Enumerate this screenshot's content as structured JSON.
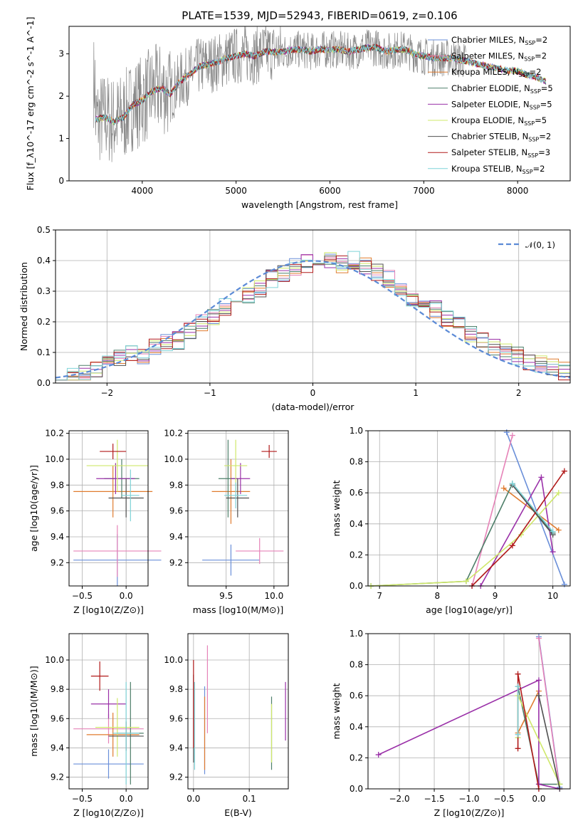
{
  "colors": {
    "ChM": "#6a8fd9",
    "SaM": "#e683b8",
    "KrM": "#e07b2f",
    "ChE": "#4e7f6a",
    "SaE": "#9a30a8",
    "KrE": "#cfe86a",
    "ChS": "#505050",
    "SaS": "#b11a1a",
    "KrS": "#7fd3d8"
  },
  "chart_data": [
    {
      "id": "spectrum",
      "type": "line",
      "title": "PLATE=1539, MJD=52943, FIBERID=0619, z=0.106",
      "xlabel": "wavelength [Angstrom, rest frame]",
      "ylabel": "Flux [f_λ10^-17 erg cm^-2 s^-1 A^-1]",
      "xlim": [
        3220,
        8560
      ],
      "ylim": [
        0,
        3.65
      ],
      "xticks": [
        "4000",
        "5000",
        "6000",
        "7000",
        "8000"
      ],
      "yticks": [
        "0",
        "1",
        "2",
        "3"
      ],
      "legend": [
        "Chabrier MILES, N_SSP=2",
        "Salpeter MILES, N_SSP=2",
        "Kroupa MILES, N_SSP=2",
        "Chabrier ELODIE, N_SSP=5",
        "Salpeter ELODIE, N_SSP=5",
        "Kroupa ELODIE, N_SSP=5",
        "Chabrier STELIB, N_SSP=2",
        "Salpeter STELIB, N_SSP=3",
        "Kroupa STELIB, N_SSP=2"
      ],
      "model_curve": [
        [
          3500,
          1.45
        ],
        [
          3600,
          1.5
        ],
        [
          3700,
          1.4
        ],
        [
          3800,
          1.5
        ],
        [
          3900,
          1.8
        ],
        [
          4000,
          1.9
        ],
        [
          4100,
          2.1
        ],
        [
          4200,
          2.2
        ],
        [
          4300,
          2.05
        ],
        [
          4400,
          2.35
        ],
        [
          4500,
          2.5
        ],
        [
          4600,
          2.7
        ],
        [
          4700,
          2.75
        ],
        [
          4800,
          2.8
        ],
        [
          4900,
          2.9
        ],
        [
          5000,
          2.95
        ],
        [
          5100,
          3.0
        ],
        [
          5200,
          2.95
        ],
        [
          5300,
          3.05
        ],
        [
          5400,
          3.05
        ],
        [
          5500,
          3.05
        ],
        [
          5600,
          3.1
        ],
        [
          5700,
          3.1
        ],
        [
          5800,
          3.05
        ],
        [
          5900,
          3.1
        ],
        [
          6000,
          3.1
        ],
        [
          6100,
          3.1
        ],
        [
          6200,
          3.05
        ],
        [
          6300,
          3.1
        ],
        [
          6400,
          3.15
        ],
        [
          6500,
          3.15
        ],
        [
          6600,
          3.05
        ],
        [
          6700,
          3.1
        ],
        [
          6800,
          3.1
        ],
        [
          6900,
          3.0
        ],
        [
          7000,
          2.95
        ],
        [
          7100,
          2.9
        ],
        [
          7200,
          2.9
        ],
        [
          7300,
          2.9
        ],
        [
          7400,
          2.85
        ],
        [
          7500,
          2.8
        ],
        [
          7600,
          2.75
        ],
        [
          7700,
          2.7
        ],
        [
          7800,
          2.65
        ],
        [
          7900,
          2.6
        ],
        [
          8000,
          2.6
        ],
        [
          8100,
          2.5
        ],
        [
          8200,
          2.45
        ],
        [
          8300,
          2.35
        ]
      ]
    },
    {
      "id": "residuals",
      "type": "step",
      "xlabel": "(data-model)/error",
      "ylabel": "Normed distribution",
      "xlim": [
        -2.5,
        2.5
      ],
      "ylim": [
        0,
        0.5
      ],
      "xticks": [
        "−2",
        "−1",
        "0",
        "1",
        "2"
      ],
      "yticks": [
        "0.0",
        "0.1",
        "0.2",
        "0.3",
        "0.4",
        "0.5"
      ],
      "legend": "𝒩(0, 1)",
      "base_hist": [
        0.03,
        0.02,
        0.03,
        0.05,
        0.06,
        0.08,
        0.1,
        0.09,
        0.12,
        0.13,
        0.14,
        0.17,
        0.2,
        0.22,
        0.25,
        0.27,
        0.29,
        0.31,
        0.34,
        0.36,
        0.38,
        0.39,
        0.4,
        0.4,
        0.39,
        0.4,
        0.38,
        0.36,
        0.34,
        0.31,
        0.28,
        0.26,
        0.24,
        0.21,
        0.19,
        0.16,
        0.14,
        0.12,
        0.1,
        0.09,
        0.07,
        0.06,
        0.05,
        0.04
      ]
    },
    {
      "id": "age-vs-Z",
      "type": "errorbar",
      "xlabel": "Z [log10(Z/Z⊙)]",
      "ylabel": "age  [log10(age/yr)]",
      "xlim": [
        -0.65,
        0.25
      ],
      "ylim": [
        9.02,
        10.22
      ],
      "xticks": [
        "−0.5",
        "0.0"
      ],
      "yticks": [
        "9.2",
        "9.4",
        "9.6",
        "9.8",
        "10.0",
        "10.2"
      ],
      "points": [
        {
          "s": "ChM",
          "x": -0.1,
          "xe": 0.5,
          "y": 9.22,
          "ye": 0.2
        },
        {
          "s": "SaM",
          "x": -0.1,
          "xe": 0.5,
          "y": 9.29,
          "ye": 0.2
        },
        {
          "s": "KrM",
          "x": -0.15,
          "xe": 0.45,
          "y": 9.75,
          "ye": 0.2
        },
        {
          "s": "ChE",
          "x": -0.05,
          "xe": 0.2,
          "y": 9.85,
          "ye": 0.15
        },
        {
          "s": "SaE",
          "x": -0.12,
          "xe": 0.22,
          "y": 9.85,
          "ye": 0.12
        },
        {
          "s": "KrE",
          "x": -0.1,
          "xe": 0.35,
          "y": 9.95,
          "ye": 0.2
        },
        {
          "s": "ChS",
          "x": 0.0,
          "xe": 0.2,
          "y": 9.7,
          "ye": 0.15
        },
        {
          "s": "SaS",
          "x": -0.15,
          "xe": 0.15,
          "y": 10.06,
          "ye": 0.06
        },
        {
          "s": "KrS",
          "x": 0.05,
          "xe": 0.1,
          "y": 9.72,
          "ye": 0.2
        }
      ]
    },
    {
      "id": "age-vs-mass",
      "type": "errorbar",
      "xlabel": "mass [log10(M/M⊙)]",
      "ylabel": "",
      "xlim": [
        9.1,
        10.15
      ],
      "ylim": [
        9.02,
        10.22
      ],
      "xticks": [
        "9.5",
        "10.0"
      ],
      "yticks": [
        "9.2",
        "9.4",
        "9.6",
        "9.8",
        "10.0",
        "10.2"
      ],
      "points": [
        {
          "s": "ChM",
          "x": 9.55,
          "xe": 0.3,
          "y": 9.22,
          "ye": 0.12
        },
        {
          "s": "SaM",
          "x": 9.85,
          "xe": 0.25,
          "y": 9.29,
          "ye": 0.1
        },
        {
          "s": "KrM",
          "x": 9.55,
          "xe": 0.2,
          "y": 9.75,
          "ye": 0.25
        },
        {
          "s": "ChE",
          "x": 9.52,
          "xe": 0.1,
          "y": 9.85,
          "ye": 0.3
        },
        {
          "s": "SaE",
          "x": 9.65,
          "xe": 0.1,
          "y": 9.85,
          "ye": 0.12
        },
        {
          "s": "KrE",
          "x": 9.6,
          "xe": 0.12,
          "y": 9.95,
          "ye": 0.2
        },
        {
          "s": "ChS",
          "x": 9.62,
          "xe": 0.12,
          "y": 9.7,
          "ye": 0.15
        },
        {
          "s": "SaS",
          "x": 9.95,
          "xe": 0.08,
          "y": 10.06,
          "ye": 0.05
        },
        {
          "s": "KrS",
          "x": 9.6,
          "xe": 0.12,
          "y": 9.72,
          "ye": 0.1
        }
      ]
    },
    {
      "id": "weight-vs-age",
      "type": "line",
      "xlabel": "age  [log10(age/yr)]",
      "ylabel": "mass weight",
      "xlim": [
        6.8,
        10.3
      ],
      "ylim": [
        0,
        1
      ],
      "xticks": [
        "7",
        "8",
        "9",
        "10"
      ],
      "yticks": [
        "0.0",
        "0.2",
        "0.4",
        "0.6",
        "0.8",
        "1.0"
      ],
      "series": [
        {
          "s": "ChM",
          "pts": [
            [
              9.2,
              0.99
            ],
            [
              10.2,
              0.01
            ]
          ]
        },
        {
          "s": "SaM",
          "pts": [
            [
              8.6,
              0.0
            ],
            [
              9.3,
              0.97
            ]
          ]
        },
        {
          "s": "KrM",
          "pts": [
            [
              9.15,
              0.63
            ],
            [
              10.1,
              0.36
            ]
          ]
        },
        {
          "s": "ChE",
          "pts": [
            [
              6.85,
              0.0
            ],
            [
              8.5,
              0.03
            ],
            [
              9.3,
              0.66
            ],
            [
              10.0,
              0.34
            ]
          ]
        },
        {
          "s": "SaE",
          "pts": [
            [
              8.75,
              0.0
            ],
            [
              9.8,
              0.7
            ],
            [
              10.0,
              0.22
            ]
          ]
        },
        {
          "s": "KrE",
          "pts": [
            [
              6.85,
              0.0
            ],
            [
              8.5,
              0.03
            ],
            [
              9.45,
              0.33
            ],
            [
              10.1,
              0.6
            ]
          ]
        },
        {
          "s": "ChS",
          "pts": [
            [
              9.3,
              0.65
            ],
            [
              10.0,
              0.33
            ]
          ]
        },
        {
          "s": "SaS",
          "pts": [
            [
              8.6,
              0.0
            ],
            [
              9.3,
              0.26
            ],
            [
              10.2,
              0.74
            ]
          ]
        },
        {
          "s": "KrS",
          "pts": [
            [
              9.3,
              0.66
            ],
            [
              10.0,
              0.35
            ]
          ]
        }
      ]
    },
    {
      "id": "mass-vs-Z",
      "type": "errorbar",
      "xlabel": "Z [log10(Z/Z⊙)]",
      "ylabel": "mass [log10(M/M⊙)]",
      "xlim": [
        -0.65,
        0.25
      ],
      "ylim": [
        9.12,
        10.18
      ],
      "xticks": [
        "−0.5",
        "0.0"
      ],
      "yticks": [
        "9.2",
        "9.4",
        "9.6",
        "9.8",
        "10.0"
      ],
      "points": [
        {
          "s": "ChM",
          "x": -0.2,
          "xe": 0.4,
          "y": 9.29,
          "ye": 0.1
        },
        {
          "s": "SaM",
          "x": -0.2,
          "xe": 0.4,
          "y": 9.53,
          "ye": 0.1
        },
        {
          "s": "KrM",
          "x": -0.15,
          "xe": 0.3,
          "y": 9.49,
          "ye": 0.15
        },
        {
          "s": "ChE",
          "x": 0.05,
          "xe": 0.15,
          "y": 9.5,
          "ye": 0.35
        },
        {
          "s": "SaE",
          "x": -0.2,
          "xe": 0.2,
          "y": 9.7,
          "ye": 0.1
        },
        {
          "s": "KrE",
          "x": -0.1,
          "xe": 0.25,
          "y": 9.54,
          "ye": 0.2
        },
        {
          "s": "ChS",
          "x": 0.0,
          "xe": 0.2,
          "y": 9.48,
          "ye": 0.1
        },
        {
          "s": "SaS",
          "x": -0.3,
          "xe": 0.1,
          "y": 9.89,
          "ye": 0.1
        },
        {
          "s": "KrS",
          "x": 0.0,
          "xe": 0.15,
          "y": 9.5,
          "ye": 0.35
        }
      ]
    },
    {
      "id": "mass-vs-EBV",
      "type": "errorbar",
      "xlabel": "E(B-V)",
      "ylabel": "",
      "xlim": [
        -0.01,
        0.17
      ],
      "ylim": [
        9.12,
        10.18
      ],
      "xticks": [
        "0.0",
        "0.1"
      ],
      "yticks": [
        "9.2",
        "9.4",
        "9.6",
        "9.8",
        "10.0"
      ],
      "points": [
        {
          "s": "ChM",
          "x": 0.02,
          "xe": 0,
          "y": 9.52,
          "ye": 0.3
        },
        {
          "s": "SaM",
          "x": 0.025,
          "xe": 0,
          "y": 9.8,
          "ye": 0.3
        },
        {
          "s": "KrM",
          "x": 0.02,
          "xe": 0,
          "y": 9.5,
          "ye": 0.25
        },
        {
          "s": "ChE",
          "x": 0.14,
          "xe": 0,
          "y": 9.5,
          "ye": 0.25
        },
        {
          "s": "SaE",
          "x": 0.165,
          "xe": 0,
          "y": 9.65,
          "ye": 0.2
        },
        {
          "s": "KrE",
          "x": 0.14,
          "xe": 0,
          "y": 9.5,
          "ye": 0.2
        },
        {
          "s": "ChS",
          "x": 0.0,
          "xe": 0,
          "y": 9.6,
          "ye": 0.3
        },
        {
          "s": "SaS",
          "x": 0.0,
          "xe": 0,
          "y": 9.7,
          "ye": 0.3
        },
        {
          "s": "KrS",
          "x": 0.002,
          "xe": 0,
          "y": 9.55,
          "ye": 0.3
        }
      ]
    },
    {
      "id": "weight-vs-Z",
      "type": "line",
      "xlabel": "Z [log10(Z/Z⊙)]",
      "ylabel": "mass weight",
      "xlim": [
        -2.45,
        0.45
      ],
      "ylim": [
        0,
        1
      ],
      "xticks": [
        "−2.0",
        "−1.5",
        "−1.0",
        "−0.5",
        "0.0"
      ],
      "yticks": [
        "0.0",
        "0.2",
        "0.4",
        "0.6",
        "0.8",
        "1.0"
      ],
      "series": [
        {
          "s": "ChM",
          "pts": [
            [
              0.0,
              0.98
            ],
            [
              0.3,
              0.01
            ]
          ]
        },
        {
          "s": "SaM",
          "pts": [
            [
              0.0,
              0.97
            ],
            [
              0.3,
              0.0
            ]
          ]
        },
        {
          "s": "KrM",
          "pts": [
            [
              -0.3,
              0.36
            ],
            [
              0.0,
              0.63
            ]
          ]
        },
        {
          "s": "ChE",
          "pts": [
            [
              -0.3,
              0.66
            ],
            [
              0.0,
              0.03
            ],
            [
              0.3,
              0.03
            ]
          ]
        },
        {
          "s": "SaE",
          "pts": [
            [
              -2.3,
              0.22
            ],
            [
              0.0,
              0.7
            ],
            [
              0.0,
              0.03
            ],
            [
              0.3,
              0.0
            ]
          ]
        },
        {
          "s": "KrE",
          "pts": [
            [
              -0.3,
              0.33
            ],
            [
              -0.3,
              0.6
            ],
            [
              0.3,
              0.03
            ]
          ]
        },
        {
          "s": "ChS",
          "pts": [
            [
              0.0,
              0.6
            ],
            [
              0.3,
              0.0
            ]
          ]
        },
        {
          "s": "SaS",
          "pts": [
            [
              -0.3,
              0.26
            ],
            [
              -0.3,
              0.74
            ],
            [
              0.0,
              0.0
            ]
          ]
        },
        {
          "s": "KrS",
          "pts": [
            [
              -0.3,
              0.66
            ],
            [
              -0.3,
              0.35
            ]
          ]
        }
      ]
    }
  ]
}
